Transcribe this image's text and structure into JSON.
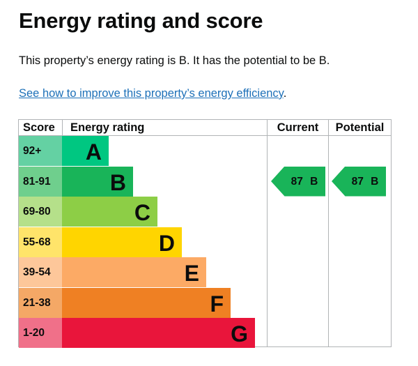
{
  "page": {
    "title": "Energy rating and score",
    "summary": "This property’s energy rating is B. It has the potential to be B.",
    "link_text": "See how to improve this property’s energy efficiency",
    "link_suffix": "."
  },
  "table": {
    "headers": {
      "score": "Score",
      "rating": "Energy rating",
      "current": "Current",
      "potential": "Potential"
    },
    "bands": [
      {
        "score": "92+",
        "letter": "A",
        "color": "#00c781",
        "score_bg": "#64d1a3"
      },
      {
        "score": "81-91",
        "letter": "B",
        "color": "#19b459",
        "score_bg": "#6fcf8d"
      },
      {
        "score": "69-80",
        "letter": "C",
        "color": "#8dce46",
        "score_bg": "#b5e08a"
      },
      {
        "score": "55-68",
        "letter": "D",
        "color": "#ffd500",
        "score_bg": "#ffe46a"
      },
      {
        "score": "39-54",
        "letter": "E",
        "color": "#fcaa65",
        "score_bg": "#fdc79a"
      },
      {
        "score": "21-38",
        "letter": "F",
        "color": "#ef8023",
        "score_bg": "#f4a866"
      },
      {
        "score": "1-20",
        "letter": "G",
        "color": "#e9153b",
        "score_bg": "#f07089"
      }
    ],
    "current": {
      "score": "87",
      "letter": "B",
      "text": "87 B",
      "band_index": 1,
      "color": "#19b459"
    },
    "potential": {
      "score": "87",
      "letter": "B",
      "text": "87 B",
      "band_index": 1,
      "color": "#19b459"
    }
  }
}
